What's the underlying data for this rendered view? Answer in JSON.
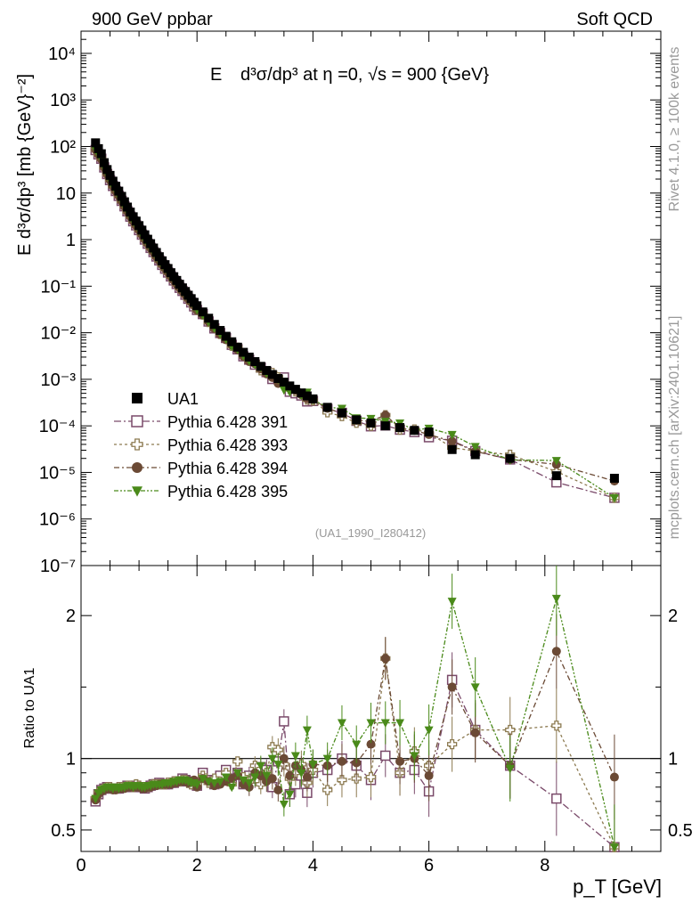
{
  "header": {
    "left": "900 GeV ppbar",
    "right": "Soft QCD"
  },
  "title": {
    "prefix": "E",
    "formula": "d³σ/dp³ at η =0, √s = 900 {GeV}"
  },
  "side_labels": {
    "rivet": "Rivet 4.1.0, ≥ 100k events",
    "mcplots": "mcplots.cern.ch [arXiv:2401.10621]"
  },
  "watermark": "(UA1_1990_I280412)",
  "chart_data": [
    {
      "type": "scatter",
      "panel": "main",
      "title": "E d³σ/dp³ at η =0, √s = 900 {GeV}",
      "ylabel": "E d³σ/dp³ [mb {GeV}⁻²]",
      "yscale": "log",
      "ylim": [
        1e-07,
        30000
      ],
      "xlim": [
        0,
        10
      ],
      "ytick_labels": [
        "10⁻⁷",
        "10⁻⁶",
        "10⁻⁵",
        "10⁻⁴",
        "10⁻³",
        "10⁻²",
        "10⁻¹",
        "1",
        "10",
        "10²",
        "10³",
        "10⁴"
      ],
      "x": [
        0.25,
        0.3,
        0.35,
        0.4,
        0.45,
        0.5,
        0.55,
        0.6,
        0.65,
        0.7,
        0.75,
        0.8,
        0.85,
        0.9,
        0.95,
        1.0,
        1.05,
        1.1,
        1.15,
        1.2,
        1.25,
        1.3,
        1.35,
        1.4,
        1.45,
        1.5,
        1.55,
        1.6,
        1.65,
        1.7,
        1.75,
        1.8,
        1.85,
        1.9,
        1.95,
        2.0,
        2.1,
        2.2,
        2.3,
        2.4,
        2.5,
        2.6,
        2.7,
        2.8,
        2.9,
        3.0,
        3.1,
        3.2,
        3.3,
        3.4,
        3.5,
        3.6,
        3.7,
        3.8,
        3.9,
        4.0,
        4.25,
        4.5,
        4.75,
        5.0,
        5.25,
        5.5,
        5.75,
        6.0,
        6.4,
        6.8,
        7.4,
        8.2,
        9.2
      ],
      "series": [
        {
          "name": "UA1",
          "marker": "filled-square",
          "color": "#000000",
          "values": [
            120,
            90,
            70,
            45,
            32,
            24,
            18,
            14,
            11,
            8.5,
            6.5,
            5,
            3.9,
            3.1,
            2.5,
            2.0,
            1.6,
            1.27,
            1.02,
            0.82,
            0.66,
            0.53,
            0.43,
            0.35,
            0.29,
            0.24,
            0.195,
            0.16,
            0.133,
            0.11,
            0.092,
            0.077,
            0.064,
            0.054,
            0.045,
            0.038,
            0.028,
            0.0205,
            0.0151,
            0.0112,
            0.0084,
            0.0064,
            0.0049,
            0.0038,
            0.003,
            0.0024,
            0.0019,
            0.00155,
            0.00127,
            0.00104,
            0.00087,
            0.00072,
            0.00061,
            0.00051,
            0.00044,
            0.00038,
            0.00025,
            0.00019,
            0.000135,
            0.000115,
            0.0001,
            9.2e-05,
            8e-05,
            7.4e-05,
            3.1e-05,
            2.4e-05,
            2e-05,
            8.5e-06,
            7.5e-06
          ]
        },
        {
          "name": "Pythia 6.428 391",
          "marker": "open-square",
          "color": "#7a4a6a",
          "ratio": [
            0.7,
            0.75,
            0.78,
            0.79,
            0.8,
            0.79,
            0.79,
            0.79,
            0.79,
            0.8,
            0.8,
            0.81,
            0.8,
            0.8,
            0.81,
            0.8,
            0.8,
            0.79,
            0.8,
            0.81,
            0.82,
            0.82,
            0.83,
            0.82,
            0.82,
            0.82,
            0.83,
            0.83,
            0.84,
            0.84,
            0.86,
            0.85,
            0.84,
            0.83,
            0.82,
            0.81,
            0.9,
            0.85,
            0.82,
            0.88,
            0.92,
            0.86,
            0.9,
            0.82,
            0.88,
            0.86,
            0.94,
            0.92,
            0.8,
            0.98,
            1.26,
            0.75,
            0.82,
            0.88,
            0.76,
            0.9,
            0.92,
            1.0,
            0.95,
            0.85,
            1.02,
            0.9,
            0.92,
            0.77,
            1.55,
            1.2,
            0.95,
            0.72,
            0.38
          ]
        },
        {
          "name": "Pythia 6.428 393",
          "marker": "open-cross",
          "color": "#8c7a50",
          "ratio": [
            0.72,
            0.76,
            0.78,
            0.79,
            0.8,
            0.8,
            0.79,
            0.79,
            0.8,
            0.8,
            0.8,
            0.81,
            0.81,
            0.8,
            0.82,
            0.81,
            0.8,
            0.8,
            0.8,
            0.81,
            0.82,
            0.82,
            0.82,
            0.82,
            0.82,
            0.83,
            0.83,
            0.84,
            0.84,
            0.84,
            0.85,
            0.85,
            0.83,
            0.82,
            0.84,
            0.82,
            0.88,
            0.83,
            0.86,
            0.84,
            0.9,
            0.82,
            0.98,
            0.87,
            0.84,
            0.95,
            0.82,
            0.9,
            1.08,
            1.06,
            0.96,
            0.86,
            0.9,
            0.96,
            0.83,
            0.92,
            0.78,
            0.85,
            0.86,
            0.87,
            1.7,
            0.9,
            1.05,
            0.95,
            1.1,
            1.2,
            1.2,
            1.23,
            0.38
          ]
        },
        {
          "name": "Pythia 6.428 394",
          "marker": "filled-circle",
          "color": "#6b4a35",
          "ratio": [
            0.71,
            0.75,
            0.77,
            0.78,
            0.79,
            0.79,
            0.78,
            0.78,
            0.79,
            0.79,
            0.79,
            0.8,
            0.8,
            0.8,
            0.8,
            0.8,
            0.79,
            0.79,
            0.8,
            0.8,
            0.81,
            0.81,
            0.82,
            0.82,
            0.82,
            0.82,
            0.82,
            0.83,
            0.83,
            0.84,
            0.84,
            0.84,
            0.83,
            0.84,
            0.85,
            0.8,
            0.86,
            0.84,
            0.81,
            0.82,
            0.84,
            0.86,
            0.88,
            0.82,
            0.8,
            0.9,
            0.88,
            0.84,
            0.86,
            0.78,
            1.0,
            0.88,
            0.95,
            0.92,
            0.87,
            0.96,
            0.95,
            0.98,
            0.97,
            1.1,
            1.7,
            0.98,
            1.0,
            0.88,
            1.5,
            1.18,
            0.95,
            1.75,
            0.87
          ]
        },
        {
          "name": "Pythia 6.428 395",
          "marker": "filled-triangle-down",
          "color": "#4a8a1a",
          "ratio": [
            0.72,
            0.76,
            0.78,
            0.79,
            0.8,
            0.8,
            0.79,
            0.8,
            0.79,
            0.8,
            0.8,
            0.81,
            0.81,
            0.8,
            0.81,
            0.81,
            0.8,
            0.8,
            0.81,
            0.81,
            0.82,
            0.82,
            0.82,
            0.82,
            0.83,
            0.83,
            0.83,
            0.84,
            0.84,
            0.85,
            0.85,
            0.85,
            0.84,
            0.83,
            0.83,
            0.82,
            0.86,
            0.84,
            0.83,
            0.84,
            0.87,
            0.8,
            0.9,
            0.85,
            0.83,
            0.87,
            0.95,
            0.88,
            1.0,
            0.96,
            0.68,
            0.75,
            1.02,
            0.9,
            1.2,
            0.96,
            1.0,
            1.25,
            1.1,
            1.25,
            1.25,
            1.25,
            1.02,
            1.2,
            2.1,
            1.5,
            0.93,
            2.12,
            0.38
          ]
        }
      ]
    },
    {
      "type": "scatter",
      "panel": "ratio",
      "ylabel": "Ratio to UA1",
      "xlabel": "p_T [GeV]",
      "ylim": [
        0.35,
        2.35
      ],
      "xlim": [
        0,
        10
      ],
      "reference_line": 1,
      "xticks": [
        0,
        2,
        4,
        6,
        8
      ],
      "yticks": [
        0.5,
        1,
        2
      ]
    }
  ]
}
